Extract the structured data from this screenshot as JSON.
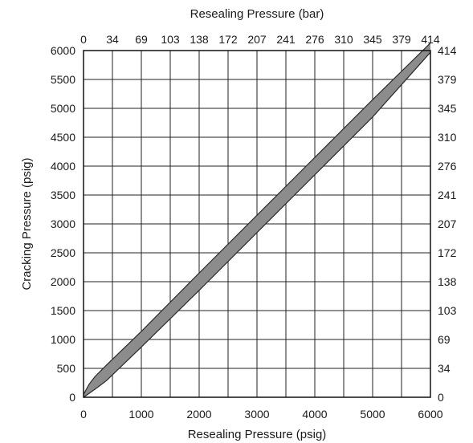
{
  "chart_data": {
    "type": "line",
    "title": "",
    "xlabel_bottom": "Resealing Pressure (psig)",
    "xlabel_top": "Resealing Pressure (bar)",
    "ylabel_left": "Cracking Pressure (psig)",
    "xlim": [
      0,
      6000
    ],
    "ylim": [
      0,
      6000
    ],
    "grid": true,
    "x_ticks_bottom": [
      "0",
      "1000",
      "2000",
      "3000",
      "4000",
      "5000",
      "6000"
    ],
    "x_ticks_top": [
      "0",
      "34",
      "69",
      "103",
      "138",
      "172",
      "207",
      "241",
      "276",
      "310",
      "345",
      "379",
      "414"
    ],
    "y_ticks_left": [
      "0",
      "500",
      "1000",
      "1500",
      "2000",
      "2500",
      "3000",
      "3500",
      "4000",
      "4500",
      "5000",
      "5500",
      "6000"
    ],
    "y_ticks_right": [
      "0",
      "34",
      "69",
      "103",
      "138",
      "172",
      "207",
      "241",
      "276",
      "310",
      "345",
      "379",
      "414"
    ],
    "series": [
      {
        "type": "band",
        "color": "#8c8c8c",
        "x": [
          0,
          100,
          200,
          400,
          1000,
          2000,
          3000,
          4000,
          5000,
          6000
        ],
        "upper": [
          50,
          230,
          360,
          560,
          1140,
          2150,
          3150,
          4150,
          5150,
          6130
        ],
        "lower": [
          0,
          70,
          140,
          290,
          870,
          1850,
          2850,
          3850,
          4850,
          5970
        ]
      }
    ]
  }
}
